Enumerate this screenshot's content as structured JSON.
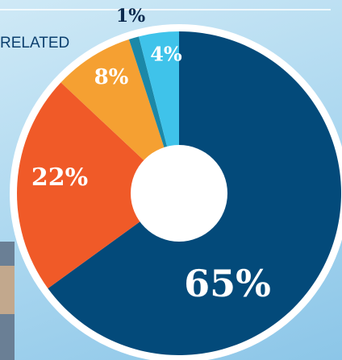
{
  "header": {
    "text": "RELATED"
  },
  "chart_data": {
    "type": "pie",
    "categories": [
      null,
      null,
      null,
      null,
      null
    ],
    "values": [
      65,
      22,
      8,
      1,
      4
    ],
    "value_labels": [
      "65%",
      "22%",
      "8%",
      "1%",
      "4%"
    ],
    "colors": [
      "#034a7a",
      "#f05a28",
      "#f5a032",
      "#1b88a8",
      "#3fc3ea"
    ]
  }
}
